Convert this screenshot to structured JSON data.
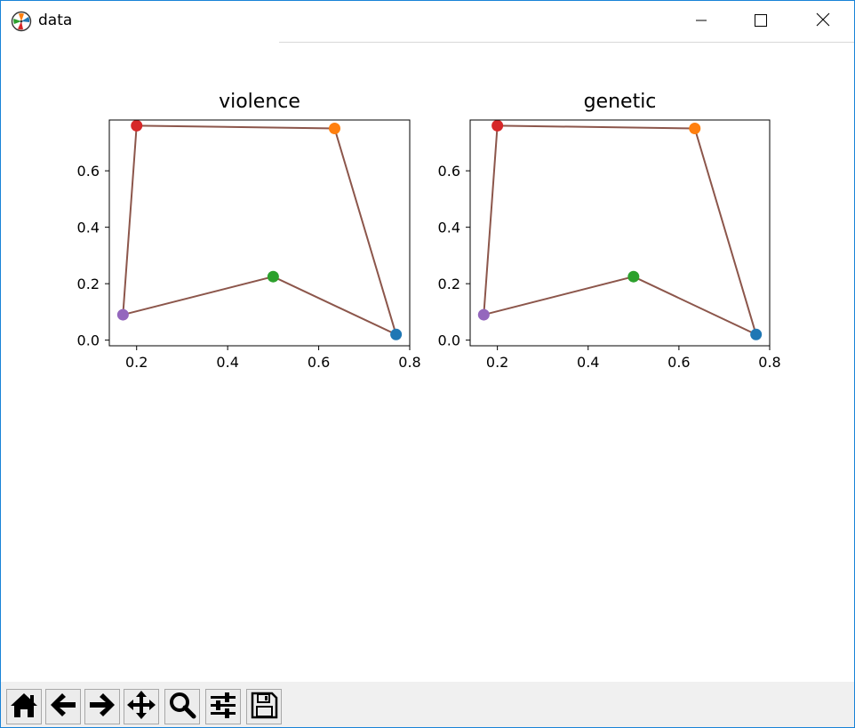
{
  "window": {
    "title": "data"
  },
  "titlebar_buttons": [
    {
      "name": "minimize",
      "icon": "minimize-icon"
    },
    {
      "name": "maximize",
      "icon": "maximize-icon"
    },
    {
      "name": "close",
      "icon": "close-icon"
    }
  ],
  "toolbar": {
    "buttons": [
      {
        "name": "home",
        "icon": "home-icon"
      },
      {
        "name": "back",
        "icon": "back-arrow-icon"
      },
      {
        "name": "forward",
        "icon": "forward-arrow-icon"
      },
      {
        "name": "pan",
        "icon": "pan-move-icon"
      },
      {
        "name": "zoom",
        "icon": "zoom-magnifier-icon"
      },
      {
        "name": "configure-subplots",
        "icon": "sliders-icon"
      },
      {
        "name": "save",
        "icon": "floppy-save-icon"
      }
    ]
  },
  "chart_data": [
    {
      "type": "scatter",
      "title": "violence",
      "xlim": [
        0.14,
        0.8
      ],
      "ylim": [
        -0.02,
        0.78
      ],
      "xticks": [
        "0.2",
        "0.4",
        "0.6",
        "0.8"
      ],
      "yticks": [
        "0.0",
        "0.2",
        "0.4",
        "0.6"
      ],
      "grid": false,
      "points": [
        {
          "x": 0.77,
          "y": 0.02,
          "color": "#1f77b4"
        },
        {
          "x": 0.635,
          "y": 0.75,
          "color": "#ff7f0e"
        },
        {
          "x": 0.5,
          "y": 0.225,
          "color": "#2ca02c"
        },
        {
          "x": 0.2,
          "y": 0.76,
          "color": "#d62728"
        },
        {
          "x": 0.17,
          "y": 0.09,
          "color": "#9467bd"
        }
      ],
      "polygon": {
        "order": [
          4,
          3,
          1,
          0,
          2,
          4
        ],
        "color": "#8c564b"
      }
    },
    {
      "type": "scatter",
      "title": "genetic",
      "xlim": [
        0.14,
        0.8
      ],
      "ylim": [
        -0.02,
        0.78
      ],
      "xticks": [
        "0.2",
        "0.4",
        "0.6",
        "0.8"
      ],
      "yticks": [
        "0.0",
        "0.2",
        "0.4",
        "0.6"
      ],
      "grid": false,
      "points": [
        {
          "x": 0.77,
          "y": 0.02,
          "color": "#1f77b4"
        },
        {
          "x": 0.635,
          "y": 0.75,
          "color": "#ff7f0e"
        },
        {
          "x": 0.5,
          "y": 0.225,
          "color": "#2ca02c"
        },
        {
          "x": 0.2,
          "y": 0.76,
          "color": "#d62728"
        },
        {
          "x": 0.17,
          "y": 0.09,
          "color": "#9467bd"
        }
      ],
      "polygon": {
        "order": [
          4,
          3,
          1,
          0,
          2,
          4
        ],
        "color": "#8c564b"
      }
    }
  ]
}
